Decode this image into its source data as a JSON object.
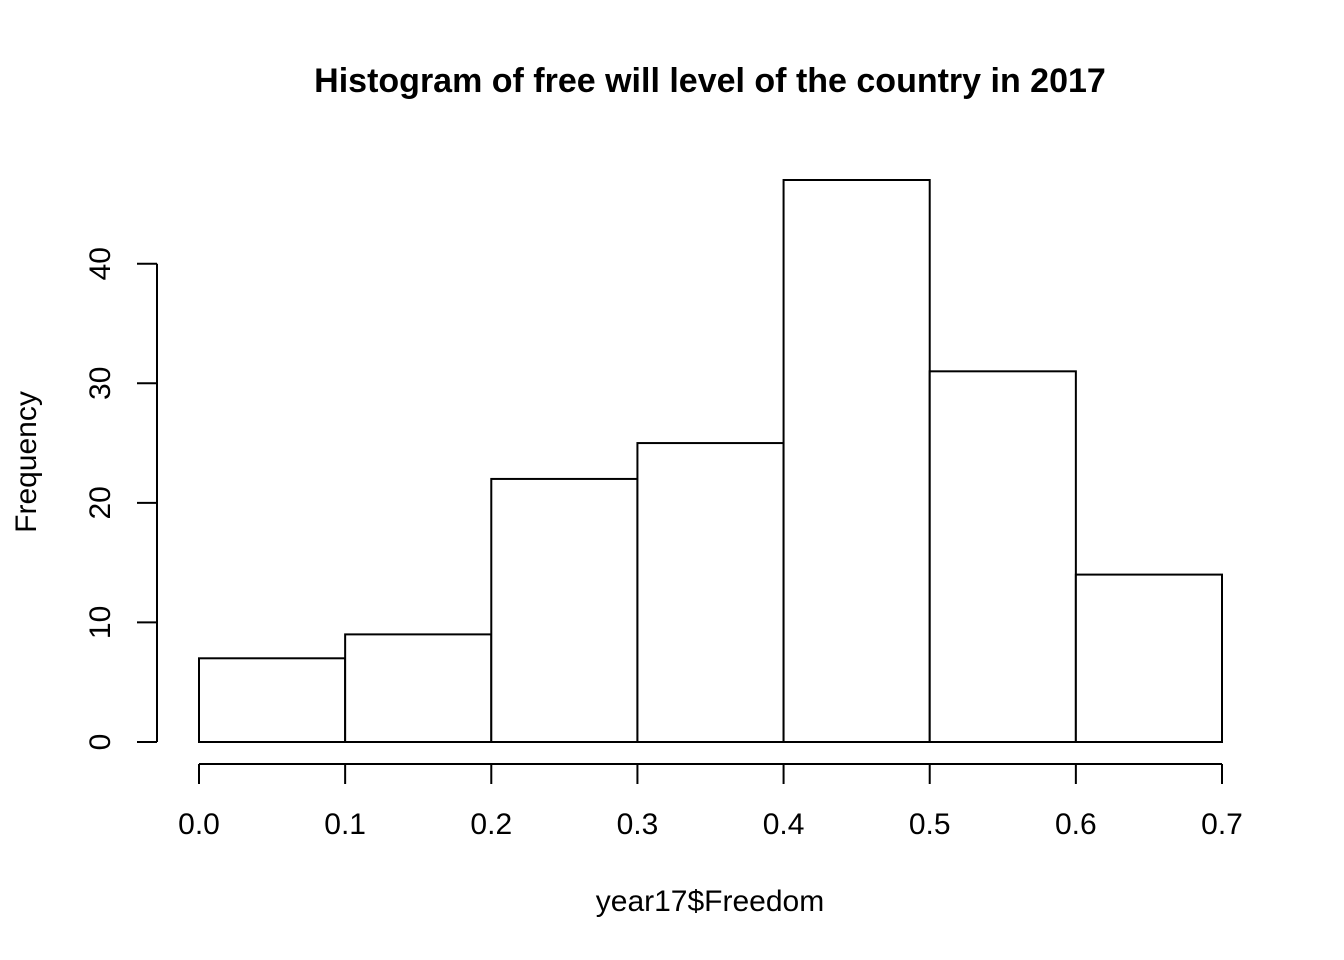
{
  "chart_data": {
    "type": "bar",
    "title": "Histogram of free will level of the country in 2017",
    "xlabel": "year17$Freedom",
    "ylabel": "Frequency",
    "bins": [
      {
        "from": 0.0,
        "to": 0.1,
        "count": 7
      },
      {
        "from": 0.1,
        "to": 0.2,
        "count": 9
      },
      {
        "from": 0.2,
        "to": 0.3,
        "count": 22
      },
      {
        "from": 0.3,
        "to": 0.4,
        "count": 25
      },
      {
        "from": 0.4,
        "to": 0.5,
        "count": 47
      },
      {
        "from": 0.5,
        "to": 0.6,
        "count": 31
      },
      {
        "from": 0.6,
        "to": 0.7,
        "count": 14
      }
    ],
    "xlim": [
      0.0,
      0.7
    ],
    "ylim": [
      0,
      47
    ],
    "x_ticks": [
      "0.0",
      "0.1",
      "0.2",
      "0.3",
      "0.4",
      "0.5",
      "0.6",
      "0.7"
    ],
    "x_tick_values": [
      0.0,
      0.1,
      0.2,
      0.3,
      0.4,
      0.5,
      0.6,
      0.7
    ],
    "y_ticks": [
      "0",
      "10",
      "20",
      "30",
      "40"
    ],
    "y_tick_values": [
      0,
      10,
      20,
      30,
      40
    ],
    "grid": false,
    "bar_fill": "#ffffff",
    "bar_stroke": "#000000"
  }
}
